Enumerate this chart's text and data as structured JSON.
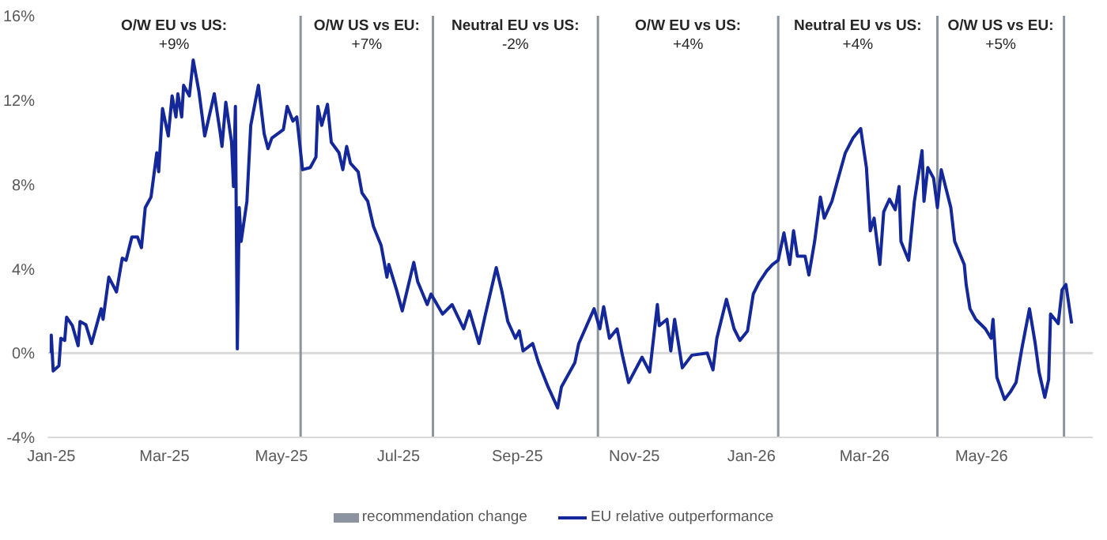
{
  "chart_data": {
    "type": "line",
    "x": [
      "2025-01-01",
      "2025-01-01",
      "2025-01-02",
      "2025-01-05",
      "2025-01-06",
      "2025-01-08",
      "2025-01-09",
      "2025-01-12",
      "2025-01-15",
      "2025-01-16",
      "2025-01-19",
      "2025-01-22",
      "2025-01-27",
      "2025-01-28",
      "2025-01-31",
      "2025-02-04",
      "2025-02-07",
      "2025-02-09",
      "2025-02-12",
      "2025-02-15",
      "2025-02-17",
      "2025-02-19",
      "2025-02-22",
      "2025-02-25",
      "2025-02-26",
      "2025-02-28",
      "2025-03-03",
      "2025-03-05",
      "2025-03-07",
      "2025-03-08",
      "2025-03-10",
      "2025-03-11",
      "2025-03-14",
      "2025-03-16",
      "2025-03-19",
      "2025-03-22",
      "2025-03-27",
      "2025-03-30",
      "2025-03-31",
      "2025-04-02",
      "2025-04-05",
      "2025-04-06",
      "2025-04-07",
      "2025-04-08",
      "2025-04-09",
      "2025-04-10",
      "2025-04-13",
      "2025-04-15",
      "2025-04-19",
      "2025-04-22",
      "2025-04-24",
      "2025-04-26",
      "2025-05-02",
      "2025-05-04",
      "2025-05-07",
      "2025-05-09",
      "2025-05-12",
      "2025-05-16",
      "2025-05-19",
      "2025-05-20",
      "2025-05-22",
      "2025-05-25",
      "2025-05-27",
      "2025-05-31",
      "2025-06-02",
      "2025-06-04",
      "2025-06-06",
      "2025-06-10",
      "2025-06-12",
      "2025-06-15",
      "2025-06-18",
      "2025-06-22",
      "2025-06-25",
      "2025-06-26",
      "2025-06-30",
      "2025-07-03",
      "2025-07-09",
      "2025-07-11",
      "2025-07-16",
      "2025-07-18",
      "2025-07-24",
      "2025-07-29",
      "2025-08-04",
      "2025-08-07",
      "2025-08-12",
      "2025-08-15",
      "2025-08-21",
      "2025-08-24",
      "2025-08-27",
      "2025-08-31",
      "2025-09-02",
      "2025-09-04",
      "2025-09-09",
      "2025-09-12",
      "2025-09-17",
      "2025-09-22",
      "2025-09-24",
      "2025-10-01",
      "2025-10-03",
      "2025-10-11",
      "2025-10-14",
      "2025-10-16",
      "2025-10-19",
      "2025-10-23",
      "2025-10-26",
      "2025-10-29",
      "2025-11-05",
      "2025-11-09",
      "2025-11-13",
      "2025-11-14",
      "2025-11-18",
      "2025-11-20",
      "2025-11-22",
      "2025-11-26",
      "2025-12-01",
      "2025-12-09",
      "2025-12-12",
      "2025-12-14",
      "2025-12-19",
      "2025-12-23",
      "2025-12-26",
      "2025-12-30",
      "2026-01-02",
      "2026-01-05",
      "2026-01-09",
      "2026-01-12",
      "2026-01-15",
      "2026-01-18",
      "2026-01-21",
      "2026-01-23",
      "2026-01-25",
      "2026-01-29",
      "2026-01-31",
      "2026-02-03",
      "2026-02-06",
      "2026-02-08",
      "2026-02-12",
      "2026-02-15",
      "2026-02-19",
      "2026-02-23",
      "2026-02-27",
      "2026-03-02",
      "2026-03-04",
      "2026-03-06",
      "2026-03-09",
      "2026-03-11",
      "2026-03-14",
      "2026-03-17",
      "2026-03-19",
      "2026-03-20",
      "2026-03-24",
      "2026-03-27",
      "2026-03-31",
      "2026-04-01",
      "2026-04-03",
      "2026-04-06",
      "2026-04-08",
      "2026-04-10",
      "2026-04-15",
      "2026-04-17",
      "2026-04-22",
      "2026-04-23",
      "2026-04-25",
      "2026-04-28",
      "2026-05-03",
      "2026-05-06",
      "2026-05-07",
      "2026-05-09",
      "2026-05-13",
      "2026-05-16",
      "2026-05-19",
      "2026-05-22",
      "2026-05-26",
      "2026-05-29",
      "2026-05-31",
      "2026-06-03",
      "2026-06-05",
      "2026-06-06",
      "2026-06-10",
      "2026-06-12",
      "2026-06-14",
      "2026-06-17"
    ],
    "series": [
      {
        "name": "EU relative outperformance",
        "color": "#14289a",
        "values": [
          0,
          0.85,
          -0.85,
          -0.6,
          0.7,
          0.6,
          1.7,
          1.3,
          0.35,
          1.5,
          1.35,
          0.45,
          2.1,
          1.6,
          3.6,
          2.9,
          4.5,
          4.4,
          5.5,
          5.5,
          5.0,
          6.9,
          7.4,
          9.5,
          8.6,
          11.6,
          10.3,
          12.2,
          11.2,
          12.3,
          11.2,
          12.7,
          12.2,
          13.9,
          12.4,
          10.3,
          12.3,
          10.5,
          9.8,
          11.9,
          10.0,
          7.9,
          11.7,
          0.2,
          6.9,
          5.3,
          7.2,
          10.8,
          12.7,
          10.4,
          9.7,
          10.2,
          10.6,
          11.7,
          11.0,
          11.2,
          8.7,
          8.8,
          9.3,
          11.7,
          10.8,
          11.8,
          10.0,
          9.5,
          8.7,
          9.8,
          9.0,
          8.6,
          7.6,
          7.2,
          6.0,
          5.1,
          3.6,
          4.2,
          3.0,
          2.0,
          4.3,
          3.4,
          2.3,
          2.8,
          1.85,
          2.3,
          1.15,
          2.0,
          0.45,
          1.7,
          4.05,
          2.9,
          1.5,
          0.7,
          1.05,
          0.1,
          0.45,
          -0.45,
          -1.6,
          -2.6,
          -1.6,
          -0.45,
          0.45,
          2.1,
          1.15,
          2.2,
          0.7,
          1.15,
          -0.2,
          -1.4,
          -0.2,
          -0.9,
          2.3,
          1.3,
          1.6,
          0.1,
          1.6,
          -0.7,
          -0.1,
          0,
          -0.8,
          0.7,
          2.55,
          1.15,
          0.6,
          1.05,
          2.8,
          3.35,
          3.9,
          4.2,
          4.4,
          5.7,
          4.2,
          5.8,
          4.6,
          4.6,
          3.7,
          5.3,
          7.4,
          6.4,
          7.2,
          8.2,
          9.5,
          10.2,
          10.65,
          8.8,
          5.8,
          6.4,
          4.2,
          6.7,
          7.3,
          6.8,
          7.9,
          5.3,
          4.4,
          7.2,
          9.6,
          7.2,
          8.8,
          8.3,
          6.9,
          8.7,
          6.9,
          5.3,
          4.2,
          3.25,
          2.1,
          1.6,
          1.15,
          0.7,
          1.6,
          -1.15,
          -2.2,
          -1.85,
          -1.4,
          0.2,
          2.1,
          0.45,
          -0.9,
          -2.1,
          -1.25,
          1.85,
          1.4,
          3.0,
          3.25,
          1.4
        ]
      }
    ],
    "xlim": [
      "2024-12-30",
      "2026-06-28"
    ],
    "xticks": [
      {
        "value": "2025-01-01",
        "label": "Jan-25"
      },
      {
        "value": "2025-03-01",
        "label": "Mar-25"
      },
      {
        "value": "2025-05-01",
        "label": "May-25"
      },
      {
        "value": "2025-07-01",
        "label": "Jul-25"
      },
      {
        "value": "2025-09-01",
        "label": "Sep-25"
      },
      {
        "value": "2025-11-01",
        "label": "Nov-25"
      },
      {
        "value": "2026-01-01",
        "label": "Jan-26"
      },
      {
        "value": "2026-03-01",
        "label": "Mar-26"
      },
      {
        "value": "2026-05-01",
        "label": "May-26"
      }
    ],
    "ylim": [
      -4,
      16
    ],
    "yticks": [
      {
        "value": -4,
        "label": "-4%"
      },
      {
        "value": 0,
        "label": "0%"
      },
      {
        "value": 4,
        "label": "4%"
      },
      {
        "value": 8,
        "label": "8%"
      },
      {
        "value": 12,
        "label": "12%"
      },
      {
        "value": 16,
        "label": "16%"
      }
    ],
    "ref_lines": [
      {
        "axis": "y",
        "value": 0,
        "color": "#d9d9d9"
      },
      {
        "axis": "x",
        "value": "2025-05-11",
        "label": "recommendation change",
        "color": "#8c959f"
      },
      {
        "axis": "x",
        "value": "2025-07-19",
        "color": "#8c959f"
      },
      {
        "axis": "x",
        "value": "2025-10-13",
        "color": "#8c959f"
      },
      {
        "axis": "x",
        "value": "2026-01-15",
        "color": "#8c959f"
      },
      {
        "axis": "x",
        "value": "2026-04-08",
        "color": "#8c959f"
      },
      {
        "axis": "x",
        "value": "2026-06-13",
        "color": "#8c959f"
      }
    ],
    "annotations": [
      "O/W EU vs US:",
      "+9%",
      "O/W US vs EU:",
      "+7%",
      "Neutral EU vs US:",
      "-2%",
      "O/W EU vs US:",
      "+4%",
      "Neutral EU vs US:",
      "+4%",
      "O/W US vs EU:",
      "+5%"
    ],
    "grid": false,
    "legend": "bottom",
    "marker": "none",
    "line_style": "solid"
  }
}
